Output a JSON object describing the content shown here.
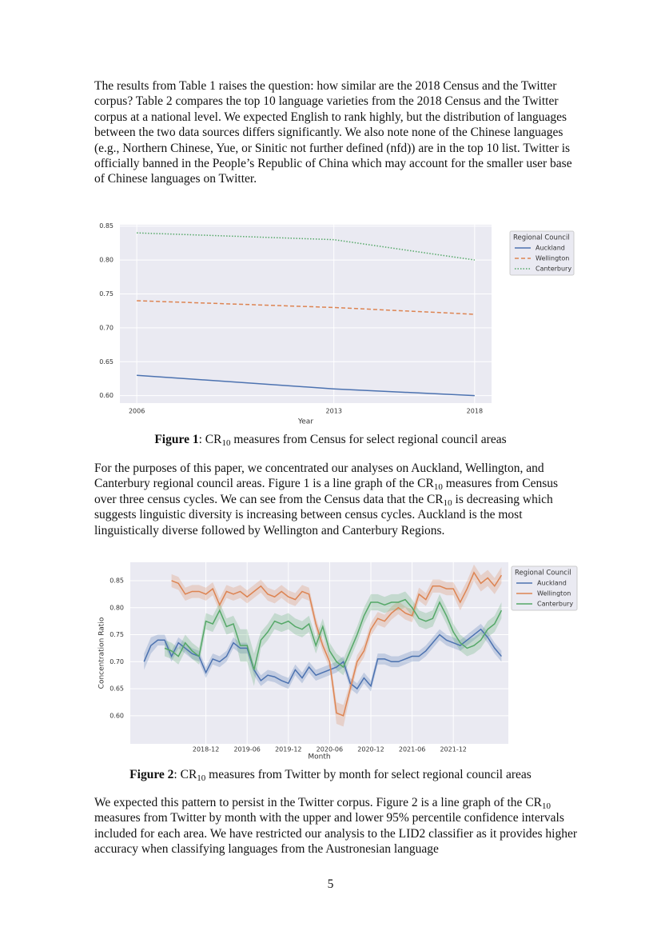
{
  "paragraphs": [
    [
      "The results from Table 1 raises the question: how similar are the 2018 Census and the Twitter corpus? Table 2 compares the top 10 language varieties from the 2018 Census and the Twitter corpus at a national level. We expected English to rank highly, but the distribution of languages between the two data sources differs significantly. We also note none of the Chinese languages (e.g., Northern Chinese, Yue, or Sinitic not further defined (nfd)) are in the top 10 list. Twitter is officially banned in the People’s Republic of China which may account for the smaller user base of Chinese languages on Twitter."
    ],
    [
      "For the purposes of this paper, we concentrated our analyses on Auckland, Wellington, and Canterbury regional council areas. Figure 1 is a line graph of the CR",
      "10",
      " measures from Census over three census cycles. We can see from the Census data that the CR",
      "10",
      " is decreasing which suggests linguistic diversity is increasing between census cycles. Auckland is the most linguistically diverse followed by Wellington and Canterbury Regions."
    ],
    [
      "We expected this pattern to persist in the Twitter corpus. Figure 2 is a line graph of the CR",
      "10",
      " measures from Twitter by month with the upper and lower 95% percentile confidence intervals included for each area. We have restricted our analysis to the LID2 classifier as it provides higher accuracy when classifying languages from the Austronesian language"
    ]
  ],
  "captions": [
    [
      "Figure 1",
      ": CR",
      "10",
      " measures from Census for select regional council areas"
    ],
    [
      "Figure 2",
      ": CR",
      "10",
      " measures from Twitter by month for select regional council areas"
    ]
  ],
  "page_number": 5,
  "chart_data": [
    {
      "type": "line",
      "xlabel": "Year",
      "legend_title": "Regional Council",
      "legend": "right",
      "grid": true,
      "x": [
        2006,
        2013,
        2018
      ],
      "xlim": [
        2005.4,
        2018.6
      ],
      "xticks": [
        2006,
        2013,
        2018
      ],
      "ylim": [
        0.589,
        0.852
      ],
      "yticks": [
        {
          "value": 0.6,
          "label": "0.60"
        },
        0.65,
        {
          "value": 0.7,
          "label": "0.70"
        },
        0.75,
        {
          "value": 0.8,
          "label": "0.80"
        },
        0.85
      ],
      "series": [
        {
          "name": "Auckland",
          "color": "#4c72b0",
          "line_style": "solid",
          "values": [
            0.63,
            0.61,
            0.6
          ]
        },
        {
          "name": "Wellington",
          "color": "#dd8452",
          "line_style": "dashed",
          "values": [
            0.74,
            0.73,
            0.72
          ]
        },
        {
          "name": "Canterbury",
          "color": "#55a868",
          "line_style": "dotted",
          "values": [
            0.84,
            0.83,
            0.8
          ]
        }
      ]
    },
    {
      "type": "line",
      "xlabel": "Month",
      "ylabel": "Concentration Ratio",
      "legend_title": "Regional Council",
      "legend": "right",
      "grid": true,
      "x": [
        "2018-03",
        "2018-04",
        "2018-05",
        "2018-06",
        "2018-07",
        "2018-08",
        "2018-09",
        "2018-10",
        "2018-11",
        "2018-12",
        "2019-01",
        "2019-02",
        "2019-03",
        "2019-04",
        "2019-05",
        "2019-06",
        "2019-07",
        "2019-08",
        "2019-09",
        "2019-10",
        "2019-11",
        "2019-12",
        "2020-01",
        "2020-02",
        "2020-03",
        "2020-04",
        "2020-05",
        "2020-06",
        "2020-07",
        "2020-08",
        "2020-09",
        "2020-10",
        "2020-11",
        "2020-12",
        "2021-01",
        "2021-02",
        "2021-03",
        "2021-04",
        "2021-05",
        "2021-06",
        "2021-07",
        "2021-08",
        "2021-09",
        "2021-10",
        "2021-11",
        "2021-12",
        "2022-01",
        "2022-02",
        "2022-03",
        "2022-04",
        "2022-05",
        "2022-06",
        "2022-07"
      ],
      "xlim": [
        "2018-01",
        "2022-08"
      ],
      "xticks": [
        "2018-12",
        "2019-06",
        "2019-12",
        "2020-06",
        "2020-12",
        "2021-06",
        "2021-12"
      ],
      "ylim": [
        0.548,
        0.884
      ],
      "yticks": [
        {
          "value": 0.6,
          "label": "0.60"
        },
        0.65,
        {
          "value": 0.7,
          "label": "0.70"
        },
        0.75,
        {
          "value": 0.8,
          "label": "0.80"
        },
        0.85
      ],
      "series": [
        {
          "name": "Auckland",
          "color": "#4c72b0",
          "values": [
            0.7,
            0.73,
            0.74,
            0.74,
            0.71,
            0.735,
            0.725,
            0.715,
            0.71,
            0.68,
            0.705,
            0.7,
            0.71,
            0.735,
            0.725,
            0.725,
            0.685,
            0.665,
            0.675,
            0.672,
            0.665,
            0.66,
            0.685,
            0.67,
            0.69,
            0.675,
            0.68,
            0.685,
            0.69,
            0.7,
            0.66,
            0.65,
            0.67,
            0.655,
            0.705,
            0.705,
            0.7,
            0.7,
            0.705,
            0.71,
            0.71,
            0.72,
            0.735,
            0.75,
            0.74,
            0.735,
            0.73,
            0.74,
            0.75,
            0.76,
            0.745,
            0.725,
            0.71
          ],
          "errors": [
            0.015,
            0.015,
            0.01,
            0.01,
            0.01,
            0.01,
            0.01,
            0.01,
            0.01,
            0.01,
            0.01,
            0.01,
            0.01,
            0.01,
            0.01,
            0.01,
            0.01,
            0.01,
            0.01,
            0.01,
            0.01,
            0.01,
            0.01,
            0.01,
            0.01,
            0.01,
            0.01,
            0.01,
            0.01,
            0.01,
            0.01,
            0.01,
            0.01,
            0.01,
            0.01,
            0.01,
            0.01,
            0.01,
            0.01,
            0.01,
            0.01,
            0.01,
            0.01,
            0.01,
            0.01,
            0.01,
            0.01,
            0.01,
            0.01,
            0.01,
            0.01,
            0.01,
            0.01
          ]
        },
        {
          "name": "Wellington",
          "color": "#dd8452",
          "values": [
            null,
            null,
            null,
            null,
            0.85,
            0.845,
            0.825,
            0.83,
            0.83,
            0.825,
            0.835,
            0.805,
            0.83,
            0.825,
            0.83,
            0.82,
            0.83,
            0.84,
            0.825,
            0.82,
            0.83,
            0.82,
            0.815,
            0.83,
            0.825,
            0.77,
            0.73,
            0.7,
            0.605,
            0.6,
            0.65,
            0.7,
            0.72,
            0.76,
            0.78,
            0.775,
            0.79,
            0.8,
            0.79,
            0.785,
            0.825,
            0.815,
            0.84,
            0.84,
            0.835,
            0.835,
            0.81,
            0.835,
            0.865,
            0.845,
            0.855,
            0.84,
            0.86
          ],
          "errors": [
            null,
            null,
            null,
            null,
            0.012,
            0.012,
            0.012,
            0.012,
            0.012,
            0.012,
            0.012,
            0.012,
            0.012,
            0.012,
            0.012,
            0.012,
            0.012,
            0.012,
            0.012,
            0.012,
            0.012,
            0.012,
            0.012,
            0.012,
            0.012,
            0.012,
            0.012,
            0.012,
            0.02,
            0.02,
            0.012,
            0.012,
            0.012,
            0.012,
            0.012,
            0.012,
            0.012,
            0.012,
            0.012,
            0.012,
            0.012,
            0.012,
            0.012,
            0.012,
            0.012,
            0.012,
            0.015,
            0.015,
            0.015,
            0.015,
            0.015,
            0.015,
            0.015
          ]
        },
        {
          "name": "Canterbury",
          "color": "#55a868",
          "values": [
            null,
            null,
            null,
            0.725,
            0.72,
            0.71,
            0.735,
            0.72,
            0.71,
            0.775,
            0.77,
            0.795,
            0.765,
            0.77,
            0.73,
            0.73,
            0.685,
            0.74,
            0.755,
            0.775,
            0.77,
            0.775,
            0.765,
            0.76,
            0.77,
            0.73,
            0.765,
            0.72,
            0.7,
            0.69,
            0.72,
            0.75,
            0.785,
            0.81,
            0.81,
            0.805,
            0.81,
            0.81,
            0.815,
            0.8,
            0.78,
            0.775,
            0.78,
            0.81,
            0.785,
            0.755,
            0.735,
            0.725,
            0.73,
            0.74,
            0.76,
            0.77,
            0.795
          ],
          "errors": [
            null,
            null,
            null,
            0.015,
            0.015,
            0.015,
            0.015,
            0.015,
            0.015,
            0.015,
            0.015,
            0.015,
            0.015,
            0.015,
            0.03,
            0.03,
            0.03,
            0.015,
            0.015,
            0.015,
            0.015,
            0.015,
            0.015,
            0.015,
            0.015,
            0.015,
            0.015,
            0.015,
            0.015,
            0.015,
            0.015,
            0.015,
            0.015,
            0.015,
            0.015,
            0.015,
            0.015,
            0.015,
            0.015,
            0.015,
            0.015,
            0.015,
            0.015,
            0.015,
            0.015,
            0.015,
            0.015,
            0.015,
            0.015,
            0.015,
            0.015,
            0.015,
            0.015
          ]
        }
      ]
    }
  ]
}
